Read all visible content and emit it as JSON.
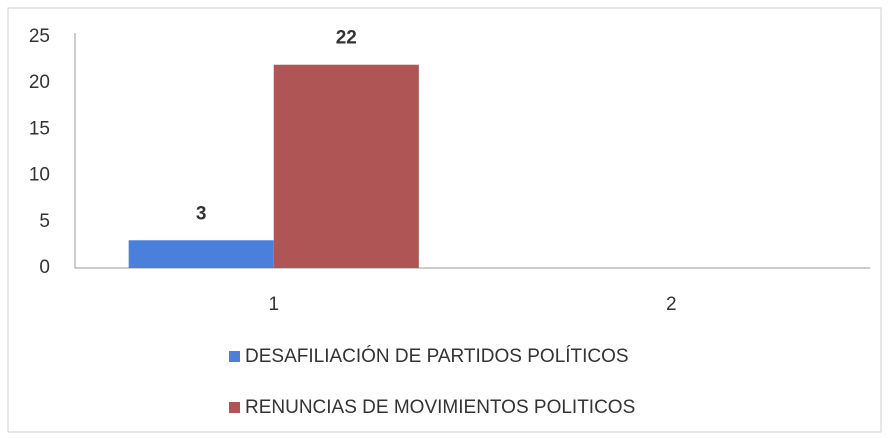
{
  "chart_data": {
    "type": "bar",
    "categories": [
      "1",
      "2"
    ],
    "series": [
      {
        "name": "DESAFILIACIÓN DE PARTIDOS POLÍTICOS",
        "color": "#4a7fdc",
        "values": [
          3,
          null
        ]
      },
      {
        "name": "RENUNCIAS DE MOVIMIENTOS POLITICOS",
        "color": "#b05555",
        "values": [
          22,
          null
        ]
      }
    ],
    "ylim": [
      0,
      25
    ],
    "yticks": [
      0,
      5,
      10,
      15,
      20,
      25
    ],
    "grid": false,
    "legend": "bottom"
  }
}
